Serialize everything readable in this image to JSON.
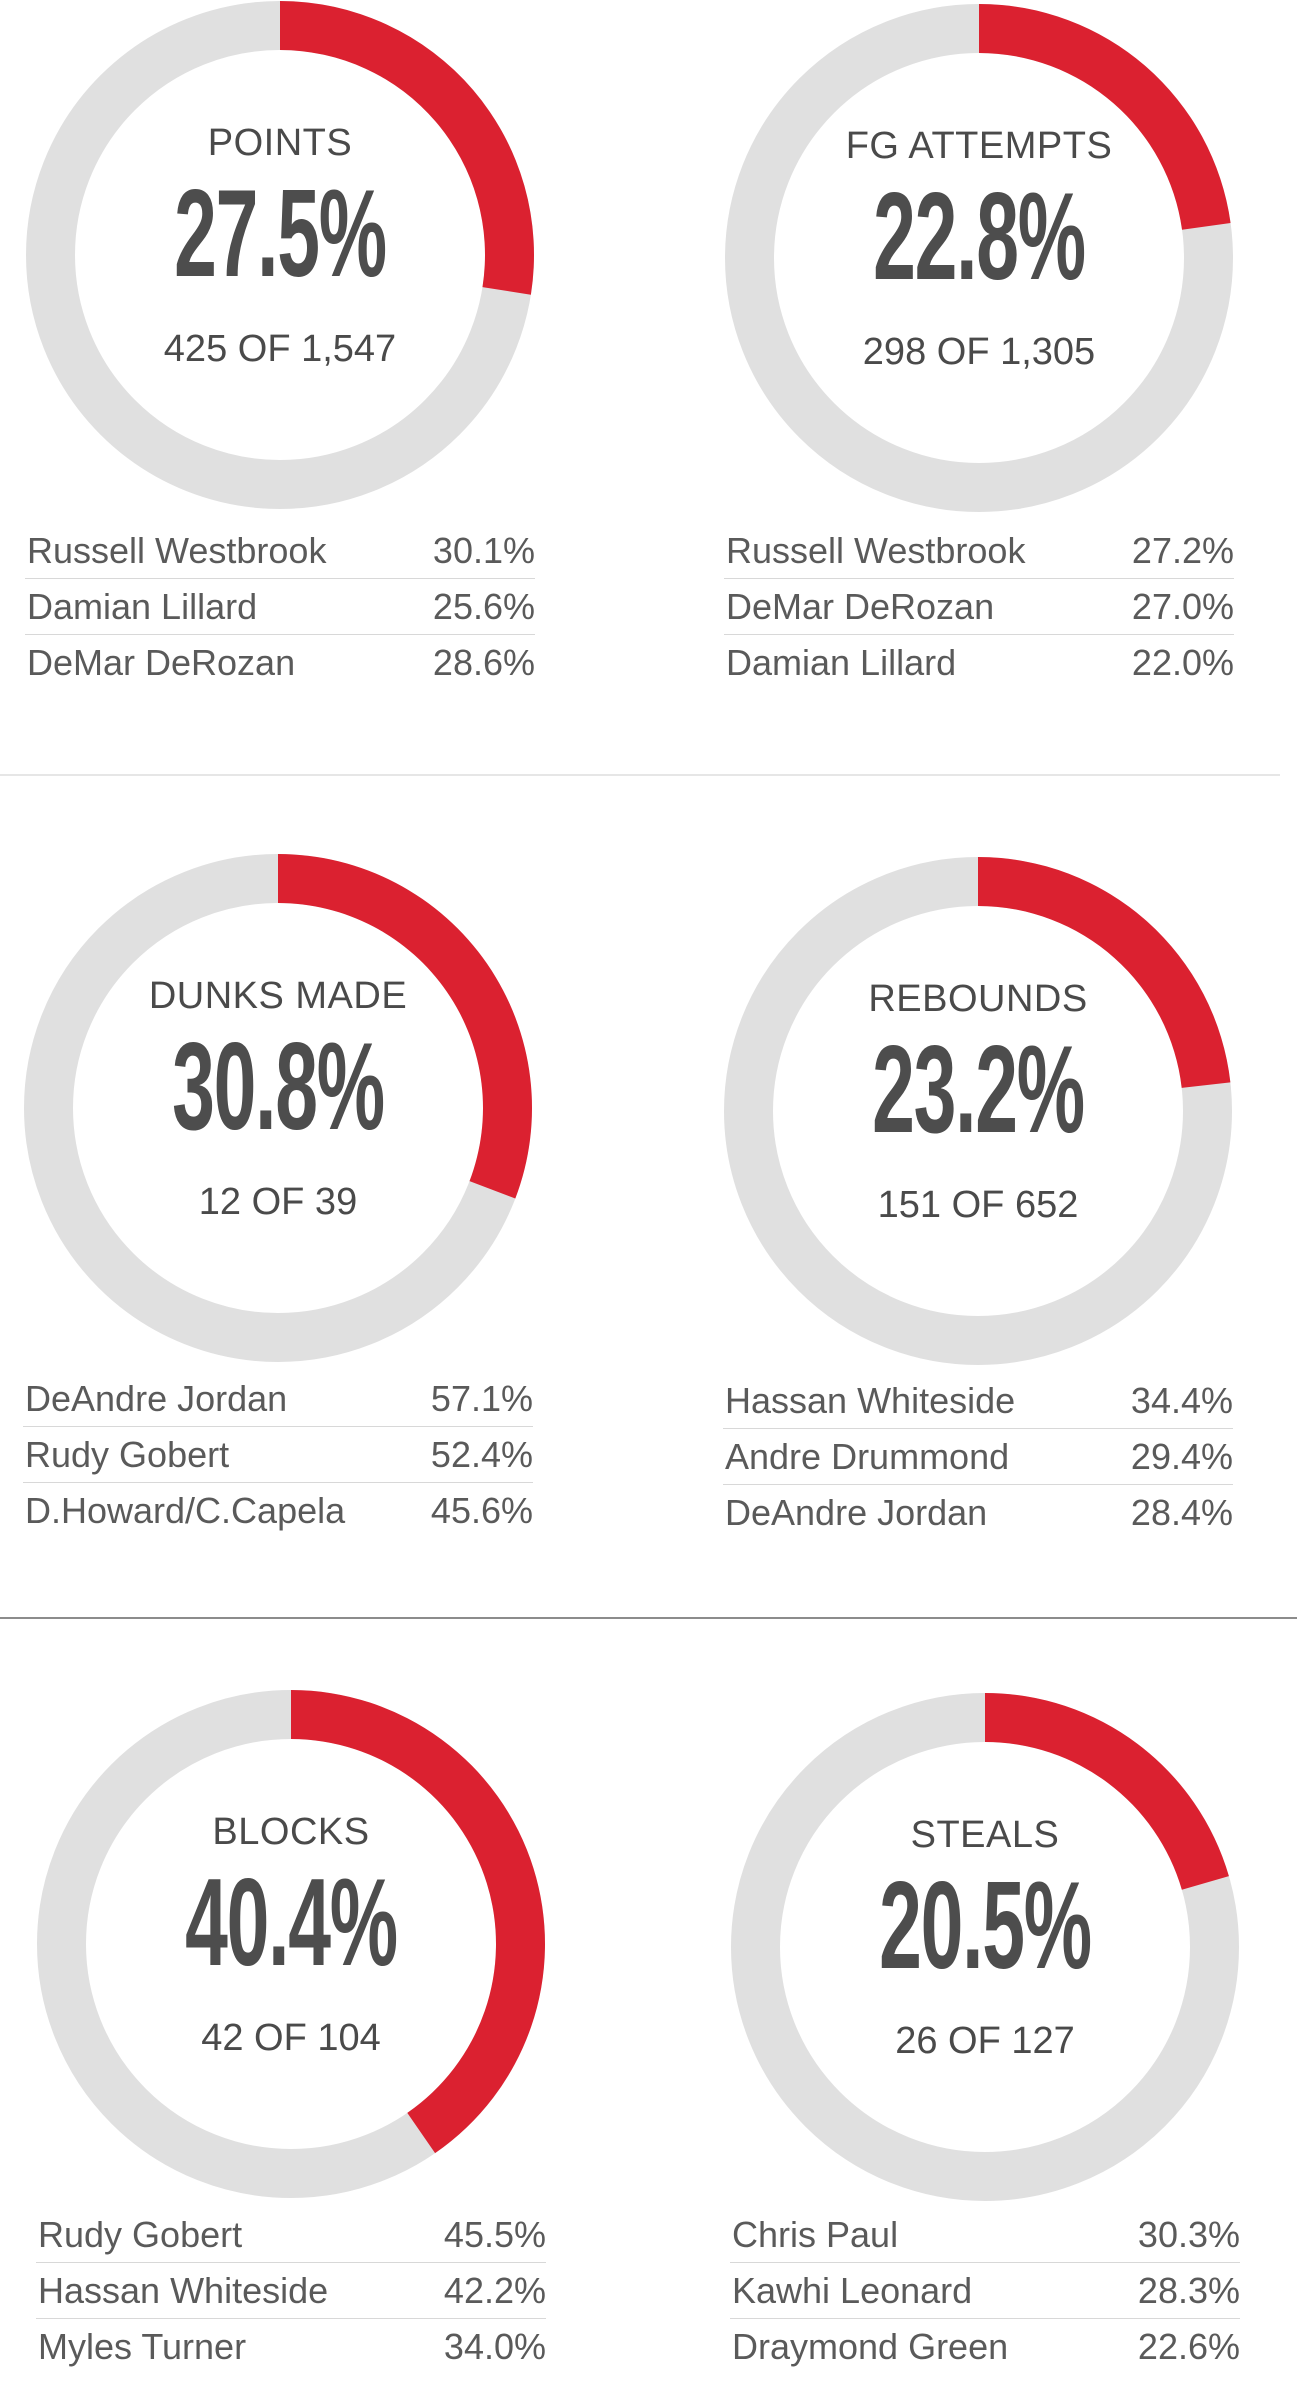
{
  "colors": {
    "highlight": "#db2130",
    "track": "#e0e0e0",
    "text": "#4d4d4d"
  },
  "chart_data": [
    {
      "type": "pie",
      "title": "POINTS",
      "percent_label": "27.5%",
      "count_label": "425 OF 1,547",
      "values": [
        425,
        1547
      ],
      "share": 0.275,
      "leaders": [
        {
          "name": "Russell Westbrook",
          "value": "30.1%"
        },
        {
          "name": "Damian Lillard",
          "value": "25.6%"
        },
        {
          "name": "DeMar DeRozan",
          "value": "28.6%"
        }
      ]
    },
    {
      "type": "pie",
      "title": "FG ATTEMPTS",
      "percent_label": "22.8%",
      "count_label": "298 OF 1,305",
      "values": [
        298,
        1305
      ],
      "share": 0.228,
      "leaders": [
        {
          "name": "Russell Westbrook",
          "value": "27.2%"
        },
        {
          "name": "DeMar DeRozan",
          "value": "27.0%"
        },
        {
          "name": "Damian Lillard",
          "value": "22.0%"
        }
      ]
    },
    {
      "type": "pie",
      "title": "DUNKS MADE",
      "percent_label": "30.8%",
      "count_label": "12 OF 39",
      "values": [
        12,
        39
      ],
      "share": 0.308,
      "leaders": [
        {
          "name": "DeAndre Jordan",
          "value": "57.1%"
        },
        {
          "name": "Rudy Gobert",
          "value": "52.4%"
        },
        {
          "name": "D.Howard/C.Capela",
          "value": "45.6%"
        }
      ]
    },
    {
      "type": "pie",
      "title": "REBOUNDS",
      "percent_label": "23.2%",
      "count_label": "151 OF 652",
      "values": [
        151,
        652
      ],
      "share": 0.232,
      "leaders": [
        {
          "name": "Hassan Whiteside",
          "value": "34.4%"
        },
        {
          "name": "Andre Drummond",
          "value": "29.4%"
        },
        {
          "name": "DeAndre Jordan",
          "value": "28.4%"
        }
      ]
    },
    {
      "type": "pie",
      "title": "BLOCKS",
      "percent_label": "40.4%",
      "count_label": "42 OF 104",
      "values": [
        42,
        104
      ],
      "share": 0.404,
      "leaders": [
        {
          "name": "Rudy Gobert",
          "value": "45.5%"
        },
        {
          "name": "Hassan Whiteside",
          "value": "42.2%"
        },
        {
          "name": "Myles Turner",
          "value": "34.0%"
        }
      ]
    },
    {
      "type": "pie",
      "title": "STEALS",
      "percent_label": "20.5%",
      "count_label": "26 OF 127",
      "values": [
        26,
        127
      ],
      "share": 0.205,
      "leaders": [
        {
          "name": "Chris Paul",
          "value": "30.3%"
        },
        {
          "name": "Kawhi Leonard",
          "value": "28.3%"
        },
        {
          "name": "Draymond Green",
          "value": "22.6%"
        }
      ]
    }
  ]
}
